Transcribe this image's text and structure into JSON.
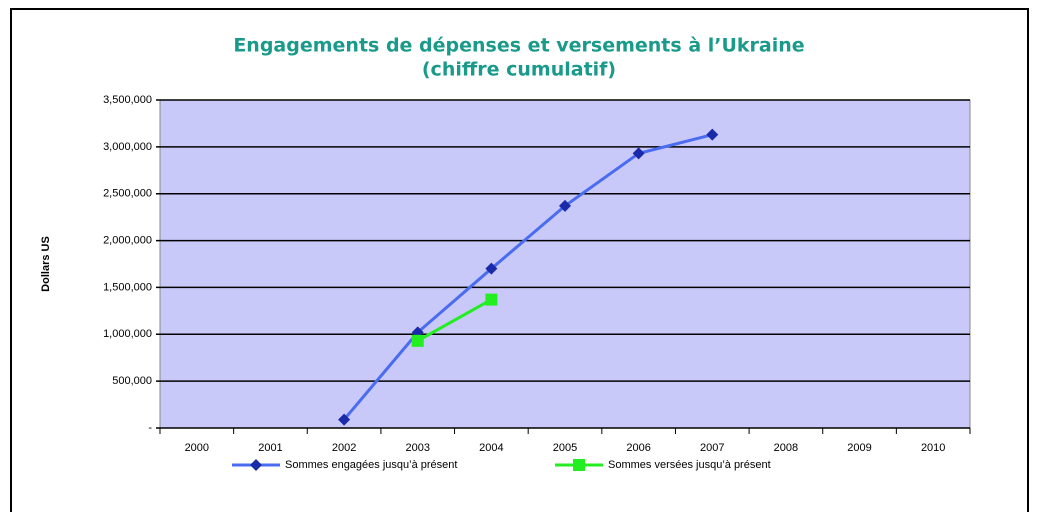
{
  "chart_data": {
    "type": "line",
    "title": "Engagements de dépenses et versements à l’Ukraine",
    "subtitle": "(chiffre cumulatif)",
    "y_label": "Dollars US",
    "categories": [
      "2000",
      "2001",
      "2002",
      "2003",
      "2004",
      "2005",
      "2006",
      "2007",
      "2008",
      "2009",
      "2010"
    ],
    "series": [
      {
        "name": "Sommes engagées jusqu’à présent",
        "color": "#4a6cf0",
        "marker": "diamond",
        "marker_color": "#1a2aa8",
        "values": [
          null,
          null,
          90000,
          1020000,
          1700000,
          2370000,
          2930000,
          3130000,
          null,
          null,
          null
        ]
      },
      {
        "name": "Sommes versées jusqu’à présent",
        "color": "#22ee22",
        "marker": "square",
        "marker_color": "#22ee22",
        "values": [
          null,
          null,
          null,
          930000,
          1370000,
          null,
          null,
          null,
          null,
          null,
          null
        ]
      }
    ],
    "ylim": [
      0,
      3500000
    ],
    "yticks": [
      {
        "value": 0,
        "label": "-"
      },
      {
        "value": 500000,
        "label": "500,000"
      },
      {
        "value": 1000000,
        "label": "1,000,000"
      },
      {
        "value": 1500000,
        "label": "1,500,000"
      },
      {
        "value": 2000000,
        "label": "2,000,000"
      },
      {
        "value": 2500000,
        "label": "2,500,000"
      },
      {
        "value": 3000000,
        "label": "3,000,000"
      },
      {
        "value": 3500000,
        "label": "3,500,000"
      }
    ],
    "grid": true,
    "plot_background": "#c9c9f9",
    "legend": "bottom"
  }
}
